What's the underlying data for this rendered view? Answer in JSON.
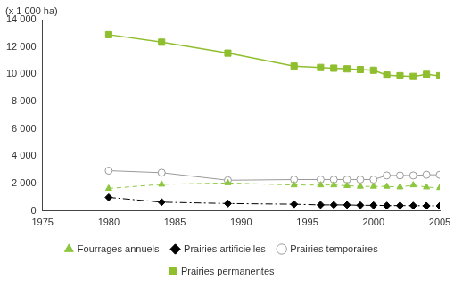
{
  "chart_data": {
    "type": "line",
    "y_label": "(x 1 000 ha)",
    "x": [
      1980,
      1984,
      1989,
      1994,
      1996,
      1997,
      1998,
      1999,
      2000,
      2001,
      2002,
      2003,
      2004,
      2005
    ],
    "xlim": [
      1975,
      2005
    ],
    "xticks": [
      1975,
      1980,
      1985,
      1990,
      1995,
      2000,
      2005
    ],
    "ylim": [
      0,
      14000
    ],
    "yticks": [
      0,
      {
        "value": 2000,
        "label": "2 000"
      },
      {
        "value": 4000,
        "label": "4 000"
      },
      {
        "value": 6000,
        "label": "6 000"
      },
      {
        "value": 8000,
        "label": "8 000"
      },
      {
        "value": 10000,
        "label": "10 000"
      },
      {
        "value": 12000,
        "label": "12 000"
      },
      {
        "value": 14000,
        "label": "14 000"
      }
    ],
    "grid": false,
    "legend": "bottom",
    "series": [
      {
        "name": "Fourrages annuels",
        "color": "#8dc63f",
        "marker": "triangle",
        "line_style": "dashed",
        "values": [
          1650,
          1950,
          2050,
          1900,
          1900,
          1900,
          1850,
          1800,
          1800,
          1800,
          1750,
          1900,
          1750,
          1700
        ]
      },
      {
        "name": "Prairies artificielles",
        "color": "#000000",
        "marker": "diamond",
        "line_style": "dashdot",
        "values": [
          1000,
          650,
          550,
          500,
          450,
          450,
          450,
          420,
          420,
          400,
          400,
          400,
          380,
          380
        ]
      },
      {
        "name": "Prairies temporaires",
        "color": "#9a9a9a",
        "marker": "open_circle",
        "line_style": "solid",
        "values": [
          2950,
          2800,
          2250,
          2300,
          2300,
          2300,
          2300,
          2300,
          2300,
          2600,
          2600,
          2600,
          2650,
          2650
        ]
      },
      {
        "name": "Prairies permanentes",
        "color": "#8fbe2e",
        "marker": "square",
        "line_style": "solid",
        "values": [
          12900,
          12350,
          11550,
          10600,
          10500,
          10450,
          10400,
          10350,
          10300,
          9950,
          9900,
          9850,
          10000,
          9900
        ]
      }
    ]
  }
}
